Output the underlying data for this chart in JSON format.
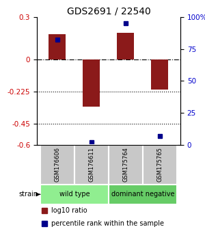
{
  "title": "GDS2691 / 22540",
  "samples": [
    "GSM176606",
    "GSM176611",
    "GSM175764",
    "GSM175765"
  ],
  "log10_ratio": [
    0.18,
    -0.33,
    0.19,
    -0.21
  ],
  "percentile_rank": [
    82,
    2,
    95,
    7
  ],
  "groups": [
    {
      "label": "wild type",
      "samples": [
        0,
        1
      ],
      "color": "#90ee90"
    },
    {
      "label": "dominant negative",
      "samples": [
        2,
        3
      ],
      "color": "#66cc66"
    }
  ],
  "ylim": [
    -0.6,
    0.3
  ],
  "yticks_left": [
    0.3,
    0,
    -0.225,
    -0.45,
    -0.6
  ],
  "yticks_right": [
    100,
    75,
    50,
    25,
    0
  ],
  "hlines_dotted": [
    -0.225,
    -0.45
  ],
  "hline_dashdot": 0,
  "bar_color": "#8B1A1A",
  "dot_color": "#00008B",
  "background_color": "#ffffff",
  "left_tick_color": "#cc0000",
  "right_tick_color": "#0000cc"
}
